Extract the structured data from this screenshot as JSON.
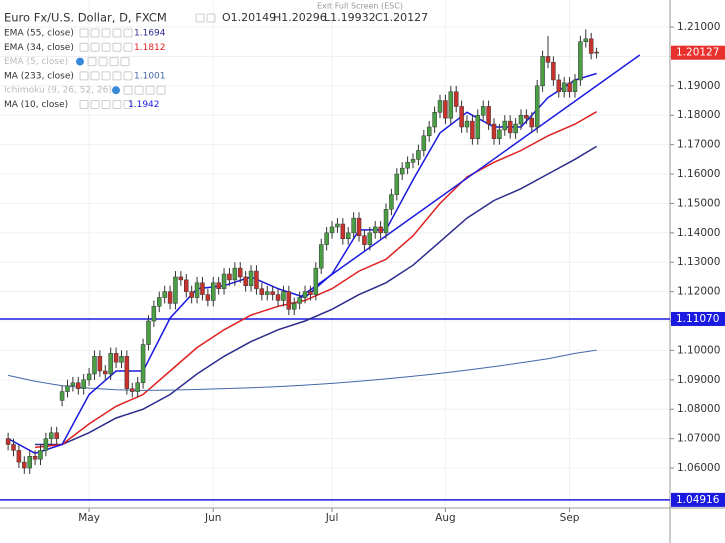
{
  "toolbar": {
    "exit": "Exit Full Screen (ESC)"
  },
  "chart_data": {
    "type": "candlestick",
    "title": "Euro Fx/U.S. Dollar, D, FXCM",
    "ohlc_labels": [
      "O1.20149",
      "H1.20296",
      "L1.19932",
      "C1.20127"
    ],
    "up_color": "#4a9e44",
    "down_color": "#c8322c",
    "open": [
      1.07,
      1.068,
      1.066,
      1.062,
      1.06,
      1.064,
      1.063,
      1.066,
      1.07,
      1.072,
      1.083,
      1.086,
      1.088,
      1.089,
      1.087,
      1.09,
      1.092,
      1.098,
      1.093,
      1.092,
      1.099,
      1.096,
      1.098,
      1.087,
      1.086,
      1.089,
      1.102,
      1.11,
      1.115,
      1.118,
      1.12,
      1.116,
      1.125,
      1.124,
      1.12,
      1.118,
      1.123,
      1.119,
      1.117,
      1.123,
      1.121,
      1.126,
      1.124,
      1.128,
      1.125,
      1.122,
      1.127,
      1.121,
      1.119,
      1.12,
      1.119,
      1.117,
      1.12,
      1.114,
      1.116,
      1.118,
      1.12,
      1.119,
      1.128,
      1.136,
      1.14,
      1.142,
      1.143,
      1.138,
      1.14,
      1.145,
      1.139,
      1.136,
      1.14,
      1.142,
      1.14,
      1.148,
      1.153,
      1.16,
      1.162,
      1.164,
      1.165,
      1.168,
      1.173,
      1.176,
      1.181,
      1.185,
      1.179,
      1.188,
      1.183,
      1.176,
      1.178,
      1.172,
      1.18,
      1.183,
      1.177,
      1.172,
      1.175,
      1.178,
      1.174,
      1.177,
      1.18,
      1.179,
      1.176,
      1.19,
      1.2,
      1.198,
      1.192,
      1.188,
      1.191,
      1.188,
      1.192,
      1.205,
      1.206,
      1.20149
    ],
    "high": [
      1.072,
      1.07,
      1.068,
      1.064,
      1.066,
      1.066,
      1.068,
      1.072,
      1.074,
      1.074,
      1.088,
      1.09,
      1.091,
      1.091,
      1.092,
      1.094,
      1.1,
      1.1,
      1.095,
      1.101,
      1.101,
      1.1,
      1.1,
      1.089,
      1.091,
      1.104,
      1.112,
      1.117,
      1.12,
      1.122,
      1.122,
      1.127,
      1.127,
      1.126,
      1.122,
      1.125,
      1.125,
      1.121,
      1.125,
      1.125,
      1.128,
      1.128,
      1.13,
      1.13,
      1.127,
      1.129,
      1.129,
      1.123,
      1.122,
      1.122,
      1.121,
      1.122,
      1.122,
      1.118,
      1.12,
      1.122,
      1.122,
      1.13,
      1.138,
      1.142,
      1.144,
      1.145,
      1.145,
      1.142,
      1.147,
      1.147,
      1.141,
      1.142,
      1.144,
      1.144,
      1.15,
      1.155,
      1.162,
      1.164,
      1.166,
      1.167,
      1.17,
      1.175,
      1.178,
      1.183,
      1.187,
      1.187,
      1.19,
      1.19,
      1.185,
      1.18,
      1.18,
      1.182,
      1.185,
      1.185,
      1.179,
      1.177,
      1.18,
      1.18,
      1.179,
      1.182,
      1.182,
      1.181,
      1.192,
      1.202,
      1.207,
      1.2,
      1.194,
      1.193,
      1.193,
      1.194,
      1.207,
      1.2092,
      1.208,
      1.20296
    ],
    "low": [
      1.066,
      1.064,
      1.06,
      1.058,
      1.058,
      1.061,
      1.061,
      1.064,
      1.068,
      1.068,
      1.081,
      1.084,
      1.086,
      1.085,
      1.085,
      1.088,
      1.09,
      1.091,
      1.09,
      1.09,
      1.094,
      1.094,
      1.085,
      1.084,
      1.084,
      1.087,
      1.1,
      1.108,
      1.113,
      1.116,
      1.114,
      1.114,
      1.122,
      1.118,
      1.116,
      1.116,
      1.117,
      1.115,
      1.115,
      1.119,
      1.119,
      1.122,
      1.122,
      1.123,
      1.12,
      1.12,
      1.119,
      1.117,
      1.117,
      1.117,
      1.115,
      1.115,
      1.112,
      1.112,
      1.114,
      1.116,
      1.117,
      1.117,
      1.126,
      1.134,
      1.138,
      1.14,
      1.136,
      1.136,
      1.138,
      1.137,
      1.134,
      1.134,
      1.138,
      1.138,
      1.138,
      1.146,
      1.151,
      1.158,
      1.16,
      1.162,
      1.163,
      1.166,
      1.171,
      1.174,
      1.179,
      1.177,
      1.177,
      1.181,
      1.174,
      1.174,
      1.17,
      1.17,
      1.178,
      1.175,
      1.17,
      1.17,
      1.173,
      1.172,
      1.172,
      1.175,
      1.177,
      1.174,
      1.174,
      1.188,
      1.196,
      1.19,
      1.186,
      1.186,
      1.186,
      1.186,
      1.19,
      1.203,
      1.199,
      1.19932
    ],
    "close": [
      1.068,
      1.066,
      1.062,
      1.06,
      1.064,
      1.063,
      1.066,
      1.07,
      1.072,
      1.07,
      1.086,
      1.088,
      1.089,
      1.087,
      1.09,
      1.092,
      1.098,
      1.093,
      1.092,
      1.099,
      1.096,
      1.098,
      1.087,
      1.086,
      1.089,
      1.102,
      1.11,
      1.115,
      1.118,
      1.12,
      1.116,
      1.125,
      1.124,
      1.12,
      1.118,
      1.123,
      1.119,
      1.117,
      1.123,
      1.121,
      1.126,
      1.124,
      1.128,
      1.125,
      1.122,
      1.127,
      1.121,
      1.119,
      1.12,
      1.119,
      1.117,
      1.12,
      1.114,
      1.116,
      1.118,
      1.12,
      1.119,
      1.128,
      1.136,
      1.14,
      1.142,
      1.143,
      1.138,
      1.14,
      1.145,
      1.139,
      1.136,
      1.14,
      1.142,
      1.14,
      1.148,
      1.153,
      1.16,
      1.162,
      1.164,
      1.165,
      1.168,
      1.173,
      1.176,
      1.181,
      1.185,
      1.179,
      1.188,
      1.183,
      1.176,
      1.178,
      1.172,
      1.18,
      1.183,
      1.177,
      1.172,
      1.175,
      1.178,
      1.174,
      1.177,
      1.18,
      1.179,
      1.176,
      1.19,
      1.2,
      1.198,
      1.192,
      1.188,
      1.191,
      1.188,
      1.192,
      1.205,
      1.206,
      1.201,
      1.20127
    ],
    "last_color": "#e8302c",
    "series": [
      {
        "name": "EMA (55, close)",
        "color": "#2c2c8c",
        "x": [
          5,
          10,
          15,
          20,
          25,
          30,
          35,
          40,
          45,
          50,
          55,
          60,
          65,
          70,
          75,
          80,
          85,
          90,
          95,
          100,
          105,
          109
        ],
        "values": [
          1.068,
          1.068,
          1.072,
          1.077,
          1.08,
          1.085,
          1.092,
          1.098,
          1.103,
          1.107,
          1.11,
          1.114,
          1.119,
          1.123,
          1.129,
          1.137,
          1.145,
          1.151,
          1.155,
          1.16,
          1.165,
          1.1694
        ]
      },
      {
        "name": "EMA (34, close)",
        "color": "#e02020",
        "x": [
          5,
          10,
          15,
          20,
          25,
          30,
          35,
          40,
          45,
          50,
          55,
          60,
          65,
          70,
          75,
          80,
          85,
          90,
          95,
          100,
          105,
          109
        ],
        "values": [
          1.067,
          1.068,
          1.075,
          1.081,
          1.085,
          1.093,
          1.101,
          1.107,
          1.112,
          1.115,
          1.117,
          1.121,
          1.127,
          1.131,
          1.139,
          1.15,
          1.159,
          1.164,
          1.168,
          1.173,
          1.177,
          1.1812
        ]
      },
      {
        "name": "EMA (5, close)",
        "hidden": true
      },
      {
        "name": "MA (233, close)",
        "color": "#4466aa",
        "x": [
          0,
          5,
          10,
          15,
          20,
          25,
          30,
          35,
          40,
          45,
          50,
          55,
          60,
          65,
          70,
          75,
          80,
          85,
          90,
          95,
          100,
          105,
          109
        ],
        "values": [
          1.0915,
          1.0895,
          1.088,
          1.0872,
          1.0866,
          1.0864,
          1.0865,
          1.0867,
          1.087,
          1.0873,
          1.0877,
          1.0882,
          1.0888,
          1.0895,
          1.0903,
          1.0912,
          1.0922,
          1.0933,
          1.0945,
          1.0958,
          1.0972,
          1.099,
          1.1001
        ]
      },
      {
        "name": "Ichimoku (9, 26, 52, 26)",
        "hidden": true
      },
      {
        "name": "MA (10, close)",
        "color": "#1a1ae0",
        "x": [
          0,
          5,
          10,
          15,
          20,
          25,
          30,
          35,
          40,
          45,
          50,
          55,
          60,
          65,
          70,
          75,
          80,
          85,
          90,
          95,
          100,
          105,
          109
        ],
        "values": [
          1.07,
          1.065,
          1.068,
          1.085,
          1.093,
          1.093,
          1.111,
          1.121,
          1.122,
          1.125,
          1.121,
          1.118,
          1.126,
          1.141,
          1.141,
          1.158,
          1.174,
          1.181,
          1.176,
          1.176,
          1.186,
          1.192,
          1.1942
        ]
      }
    ],
    "trendline": {
      "color": "#1a1ae0",
      "x": [
        54,
        117
      ],
      "values": [
        1.118,
        1.2005
      ]
    },
    "hlines": [
      {
        "value": 1.1107,
        "label": "1.11070",
        "color": "#1a1ae0"
      },
      {
        "value": 1.04916,
        "label": "1.04916",
        "color": "#1a1ae0"
      }
    ],
    "xlim": [
      -1.5,
      122.6
    ],
    "xticks": [
      {
        "value": 15,
        "label": "May"
      },
      {
        "value": 38,
        "label": "Jun"
      },
      {
        "value": 60,
        "label": "Jul"
      },
      {
        "value": 81,
        "label": "Aug"
      },
      {
        "value": 104,
        "label": "Sep"
      }
    ],
    "ylim": [
      1.0464,
      1.2192
    ],
    "yticks": [
      {
        "value": 1.06,
        "label": "1.06000"
      },
      {
        "value": 1.07,
        "label": "1.07000"
      },
      {
        "value": 1.08,
        "label": "1.08000"
      },
      {
        "value": 1.09,
        "label": "1.09000"
      },
      {
        "value": 1.1,
        "label": "1.10000"
      },
      {
        "value": 1.11,
        "label": "1.11000"
      },
      {
        "value": 1.12,
        "label": "1.12000"
      },
      {
        "value": 1.13,
        "label": "1.13000"
      },
      {
        "value": 1.14,
        "label": "1.14000"
      },
      {
        "value": 1.15,
        "label": "1.15000"
      },
      {
        "value": 1.16,
        "label": "1.16000"
      },
      {
        "value": 1.17,
        "label": "1.17000"
      },
      {
        "value": 1.18,
        "label": "1.18000"
      },
      {
        "value": 1.19,
        "label": "1.19000"
      },
      {
        "value": 1.2,
        "label": "1.20000"
      },
      {
        "value": 1.21,
        "label": "1.21000"
      }
    ],
    "grid": true
  }
}
